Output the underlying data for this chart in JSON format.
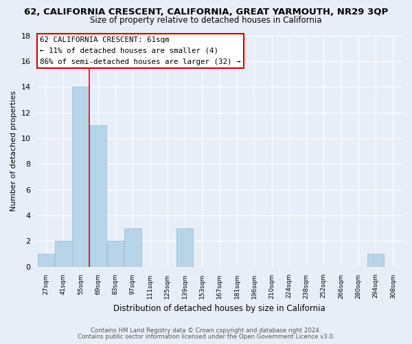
{
  "title": "62, CALIFORNIA CRESCENT, CALIFORNIA, GREAT YARMOUTH, NR29 3QP",
  "subtitle": "Size of property relative to detached houses in California",
  "xlabel": "Distribution of detached houses by size in California",
  "ylabel": "Number of detached properties",
  "bin_labels": [
    "27sqm",
    "41sqm",
    "55sqm",
    "69sqm",
    "83sqm",
    "97sqm",
    "111sqm",
    "125sqm",
    "139sqm",
    "153sqm",
    "167sqm",
    "181sqm",
    "196sqm",
    "210sqm",
    "224sqm",
    "238sqm",
    "252sqm",
    "266sqm",
    "280sqm",
    "294sqm",
    "308sqm"
  ],
  "bar_values": [
    1,
    2,
    14,
    11,
    2,
    3,
    0,
    0,
    3,
    0,
    0,
    0,
    0,
    0,
    0,
    0,
    0,
    0,
    0,
    1,
    0
  ],
  "bar_color": "#b8d4e8",
  "bar_edge_color": "#a0c0d8",
  "vline_x": 2.5,
  "vline_color": "red",
  "ylim": [
    0,
    18
  ],
  "yticks": [
    0,
    2,
    4,
    6,
    8,
    10,
    12,
    14,
    16,
    18
  ],
  "annotation_title": "62 CALIFORNIA CRESCENT: 61sqm",
  "annotation_line1": "← 11% of detached houses are smaller (4)",
  "annotation_line2": "86% of semi-detached houses are larger (32) →",
  "annotation_box_facecolor": "#ffffff",
  "annotation_box_edgecolor": "#cc0000",
  "footer_line1": "Contains HM Land Registry data © Crown copyright and database right 2024.",
  "footer_line2": "Contains public sector information licensed under the Open Government Licence v3.0.",
  "background_color": "#e8eef8",
  "grid_color": "#ffffff",
  "title_fontsize": 9.5,
  "subtitle_fontsize": 8.5
}
